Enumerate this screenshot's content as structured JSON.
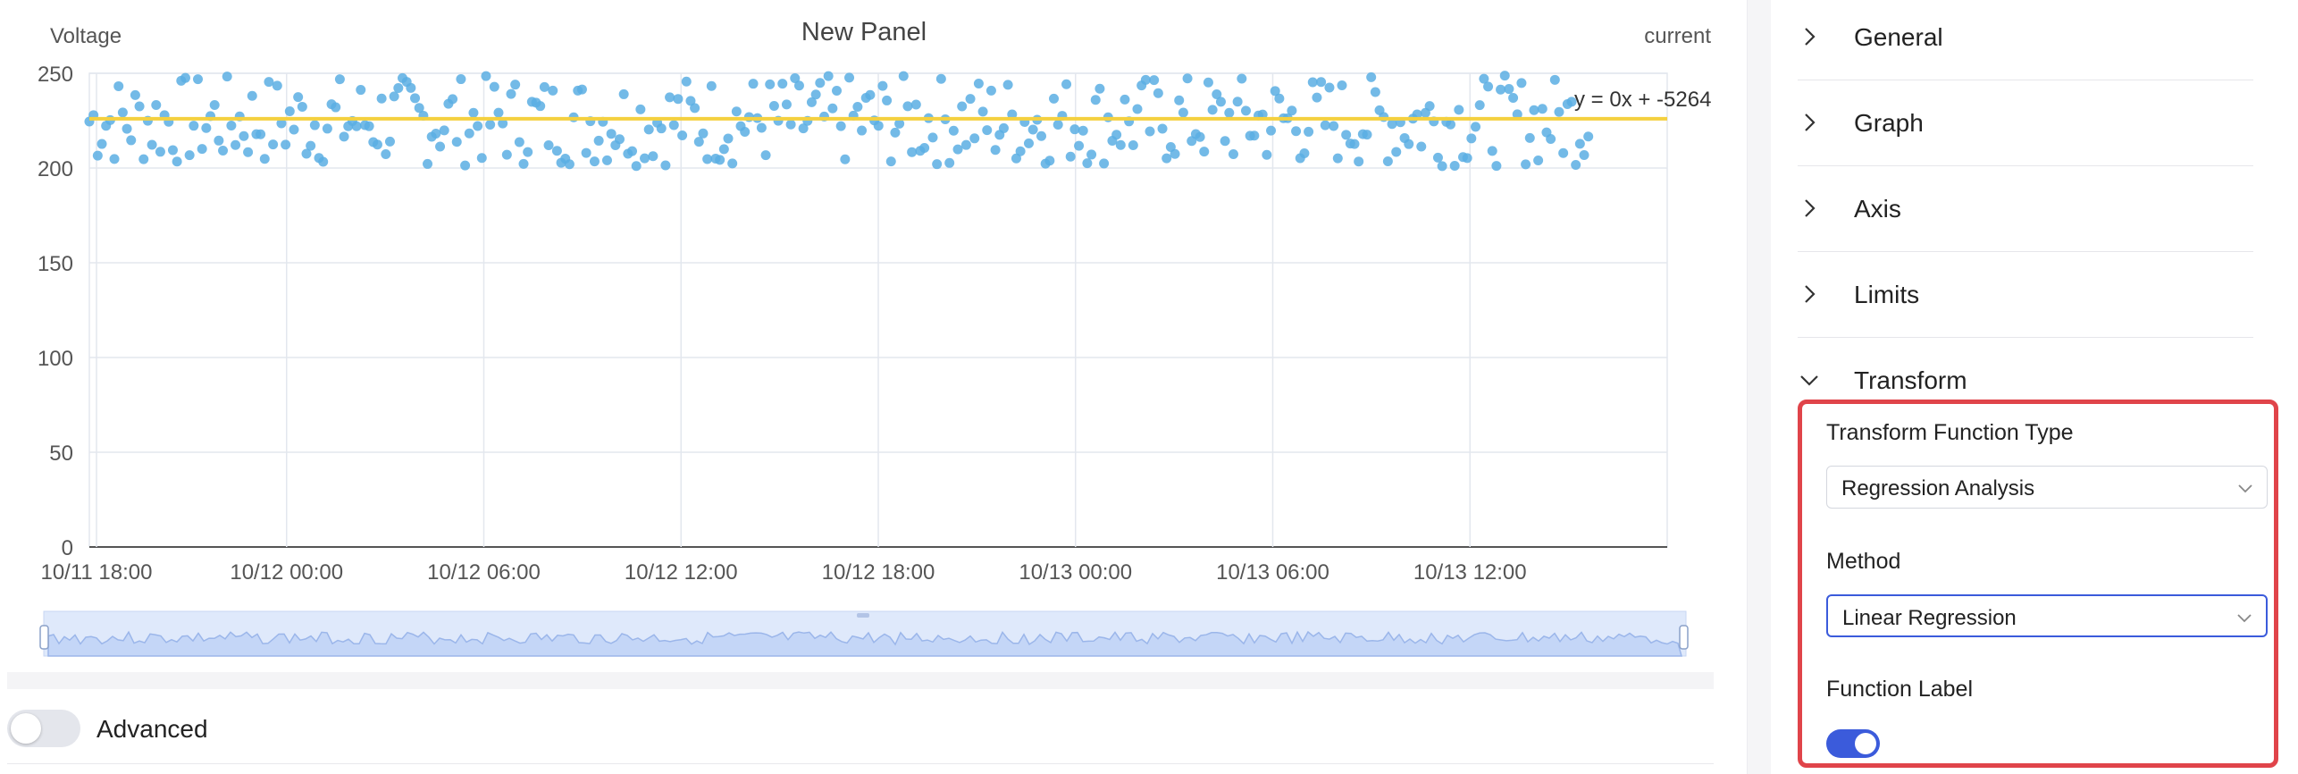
{
  "panel": {
    "title": "New Panel",
    "left_axis_label": "Voltage",
    "right_axis_label": "current",
    "regression_label": "y = 0x + -5264"
  },
  "chart_data": {
    "type": "scatter",
    "title": "New Panel",
    "ylabel": "Voltage",
    "y2label": "current",
    "x_range": [
      "10/11 18:00",
      "10/13 18:00"
    ],
    "ylim": [
      0,
      250
    ],
    "yticks": [
      0,
      50,
      100,
      150,
      200,
      250
    ],
    "xticks": [
      "10/11 18:00",
      "10/12 00:00",
      "10/12 06:00",
      "10/12 12:00",
      "10/12 18:00",
      "10/13 00:00",
      "10/13 06:00",
      "10/13 12:00"
    ],
    "grid": true,
    "series": [
      {
        "kind": "points",
        "value_range": [
          201,
          249
        ],
        "color": "#5aaee3"
      },
      {
        "kind": "regression-line",
        "value": 226,
        "color": "#f4d03f"
      }
    ],
    "navigator": true
  },
  "advanced": {
    "label": "Advanced",
    "enabled": false
  },
  "settings": {
    "sections": [
      {
        "label": "General",
        "expanded": false
      },
      {
        "label": "Graph",
        "expanded": false
      },
      {
        "label": "Axis",
        "expanded": false
      },
      {
        "label": "Limits",
        "expanded": false
      },
      {
        "label": "Transform",
        "expanded": true
      }
    ],
    "transform": {
      "function_type_label": "Transform Function Type",
      "function_type_value": "Regression Analysis",
      "method_label": "Method",
      "method_value": "Linear Regression",
      "function_label_label": "Function Label",
      "function_label_enabled": true
    }
  },
  "colors": {
    "accent": "#3b5bdb",
    "highlight": "#e0444a",
    "points": "#5aaee3",
    "regression": "#f4d03f"
  }
}
